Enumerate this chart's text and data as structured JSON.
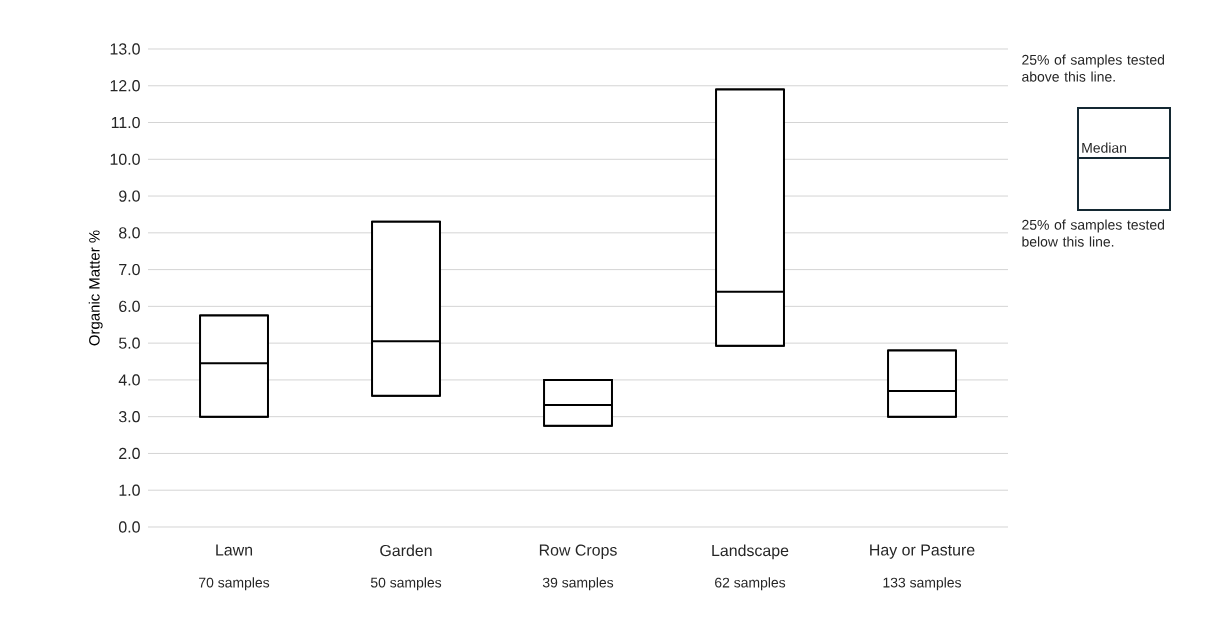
{
  "chart_data": {
    "type": "box",
    "ylabel": "Organic Matter %",
    "categories": [
      "Lawn",
      "Garden",
      "Row Crops",
      "Landscape",
      "Hay or Pasture"
    ],
    "boxes": [
      {
        "low": 3.0,
        "q1": 3.0,
        "median": 4.45,
        "q3": 5.75,
        "high": 5.75
      },
      {
        "low": 3.57,
        "q1": 3.57,
        "median": 5.05,
        "q3": 8.3,
        "high": 8.3
      },
      {
        "low": 2.75,
        "q1": 2.75,
        "median": 3.32,
        "q3": 4.0,
        "high": 4.0
      },
      {
        "low": 4.93,
        "q1": 4.93,
        "median": 6.4,
        "q3": 11.9,
        "high": 11.9
      },
      {
        "low": 3.0,
        "q1": 3.0,
        "median": 3.7,
        "q3": 4.8,
        "high": 4.8
      }
    ],
    "ylim": [
      0,
      13
    ],
    "yticks": [
      {
        "value": 0,
        "label": "0.0"
      },
      {
        "value": 1,
        "label": "1.0"
      },
      {
        "value": 2,
        "label": "2.0"
      },
      {
        "value": 3,
        "label": "3.0"
      },
      {
        "value": 4,
        "label": "4.0"
      },
      {
        "value": 5,
        "label": "5.0"
      },
      {
        "value": 6,
        "label": "6.0"
      },
      {
        "value": 7,
        "label": "7.0"
      },
      {
        "value": 8,
        "label": "8.0"
      },
      {
        "value": 9,
        "label": "9.0"
      },
      {
        "value": 10,
        "label": "10.0"
      },
      {
        "value": 11,
        "label": "11.0"
      },
      {
        "value": 12,
        "label": "12.0"
      },
      {
        "value": 13,
        "label": "13.0"
      }
    ],
    "grid": "y",
    "annotations": [
      "70 samples",
      "50 samples",
      "39 samples",
      "62 samples",
      "133 samples",
      "25% of samples tested above this line.",
      "Median",
      "25% of samples tested below this line."
    ]
  }
}
